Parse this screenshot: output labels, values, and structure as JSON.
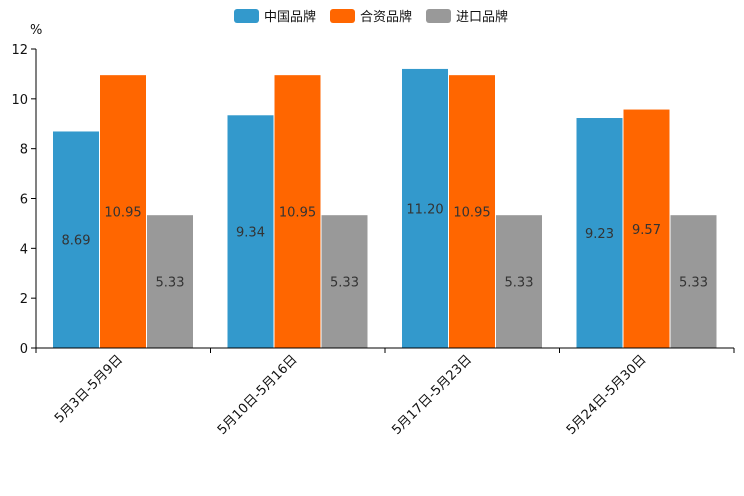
{
  "chart_data": {
    "type": "bar",
    "unit_label": "%",
    "categories": [
      "5月3日-5月9日",
      "5月10日-5月16日",
      "5月17日-5月23日",
      "5月24日-5月30日"
    ],
    "series": [
      {
        "name": "中国品牌",
        "color": "#3399cc",
        "values": [
          8.69,
          9.34,
          11.2,
          9.23
        ],
        "labels": [
          "8.69",
          "9.34",
          "11.20",
          "9.23"
        ]
      },
      {
        "name": "合资品牌",
        "color": "#ff6600",
        "values": [
          10.95,
          10.95,
          10.95,
          9.57
        ],
        "labels": [
          "10.95",
          "10.95",
          "10.95",
          "9.57"
        ]
      },
      {
        "name": "进口品牌",
        "color": "#999999",
        "values": [
          5.33,
          5.33,
          5.33,
          5.33
        ],
        "labels": [
          "5.33",
          "5.33",
          "5.33",
          "5.33"
        ]
      }
    ],
    "ylim": [
      0,
      12
    ],
    "yticks": [
      0,
      2,
      4,
      6,
      8,
      10,
      12
    ],
    "legend_position": "top-center",
    "grid": false
  }
}
